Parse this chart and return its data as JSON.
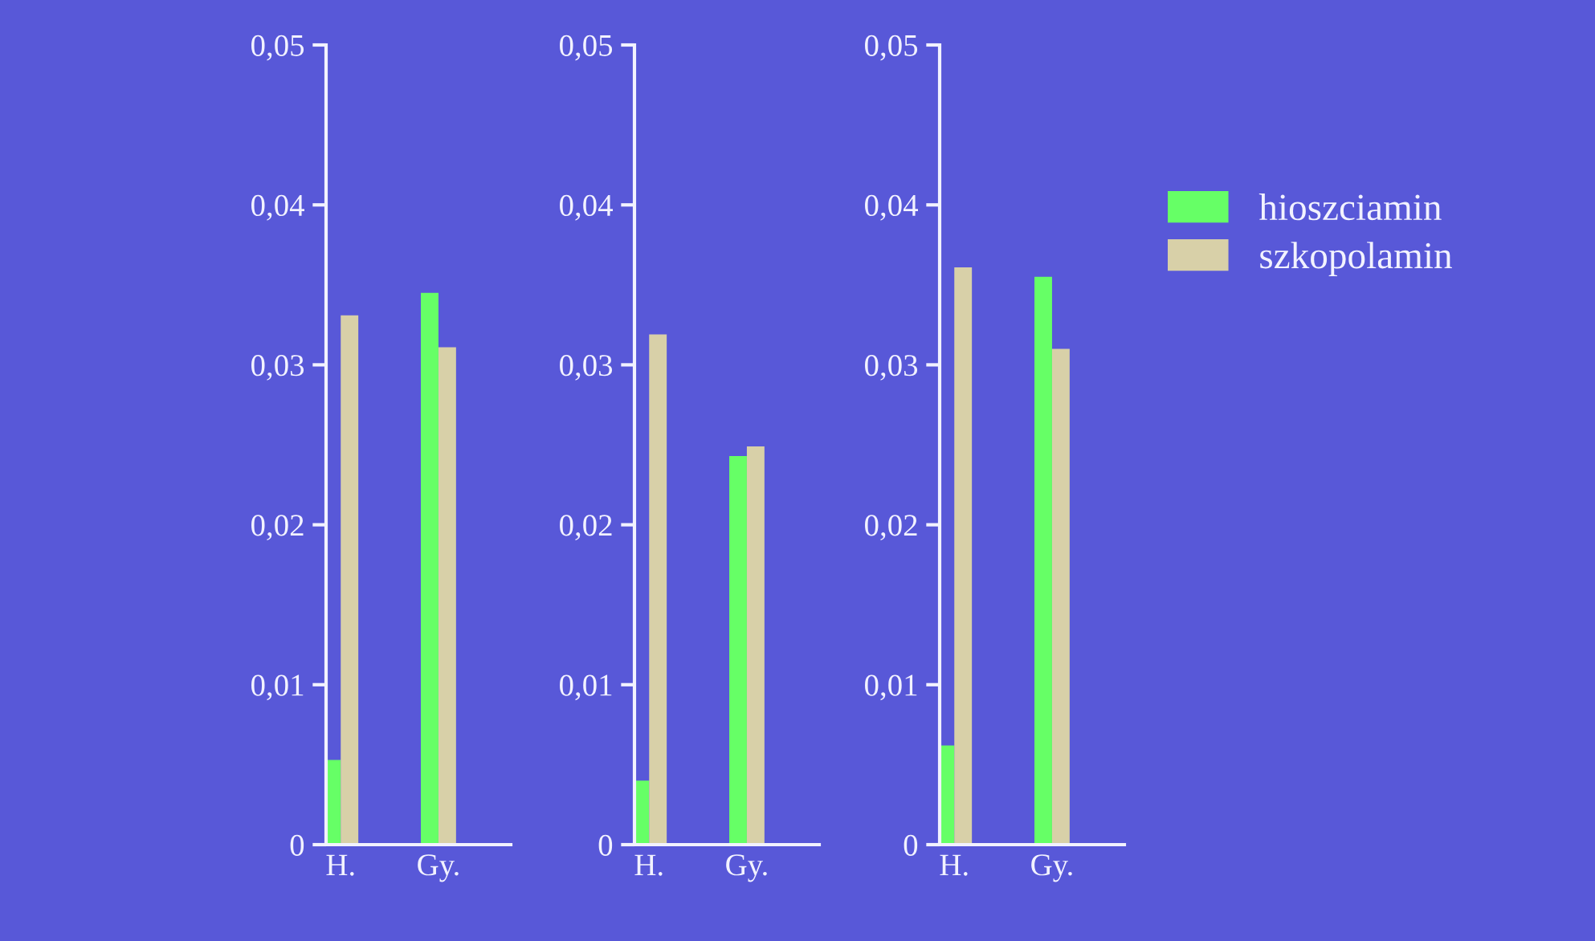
{
  "chart_data": [
    {
      "type": "bar",
      "categories": [
        "H.",
        "Gy."
      ],
      "ylim": [
        0,
        0.05
      ],
      "yticks": [
        0,
        {
          "value": 0.01,
          "label": "0,01"
        },
        {
          "value": 0.02,
          "label": "0,02"
        },
        {
          "value": 0.03,
          "label": "0,03"
        },
        {
          "value": 0.04,
          "label": "0,04"
        },
        {
          "value": 0.05,
          "label": "0,05"
        }
      ],
      "grid": false,
      "legend": false,
      "series": [
        {
          "color": "#66ff66",
          "values": [
            0.0053,
            0.0345
          ]
        },
        {
          "color": "#d8d0a8",
          "values": [
            0.0331,
            0.0311
          ]
        }
      ]
    },
    {
      "type": "bar",
      "categories": [
        "H.",
        "Gy."
      ],
      "ylim": [
        0,
        0.05
      ],
      "yticks": [
        0,
        {
          "value": 0.01,
          "label": "0,01"
        },
        {
          "value": 0.02,
          "label": "0,02"
        },
        {
          "value": 0.03,
          "label": "0,03"
        },
        {
          "value": 0.04,
          "label": "0,04"
        },
        {
          "value": 0.05,
          "label": "0,05"
        }
      ],
      "grid": false,
      "legend": false,
      "series": [
        {
          "color": "#66ff66",
          "values": [
            0.004,
            0.0243
          ]
        },
        {
          "color": "#d8d0a8",
          "values": [
            0.0319,
            0.0249
          ]
        }
      ]
    },
    {
      "type": "bar",
      "categories": [
        "H.",
        "Gy."
      ],
      "ylim": [
        0,
        0.05
      ],
      "yticks": [
        0,
        {
          "value": 0.01,
          "label": "0,01"
        },
        {
          "value": 0.02,
          "label": "0,02"
        },
        {
          "value": 0.03,
          "label": "0,03"
        },
        {
          "value": 0.04,
          "label": "0,04"
        },
        {
          "value": 0.05,
          "label": "0,05"
        }
      ],
      "grid": false,
      "legend": "right",
      "series": [
        {
          "name": "hioszciamin",
          "color": "#66ff66",
          "values": [
            0.0062,
            0.0355
          ]
        },
        {
          "name": "szkopolamin",
          "color": "#d8d0a8",
          "values": [
            0.0361,
            0.031
          ]
        }
      ]
    }
  ]
}
